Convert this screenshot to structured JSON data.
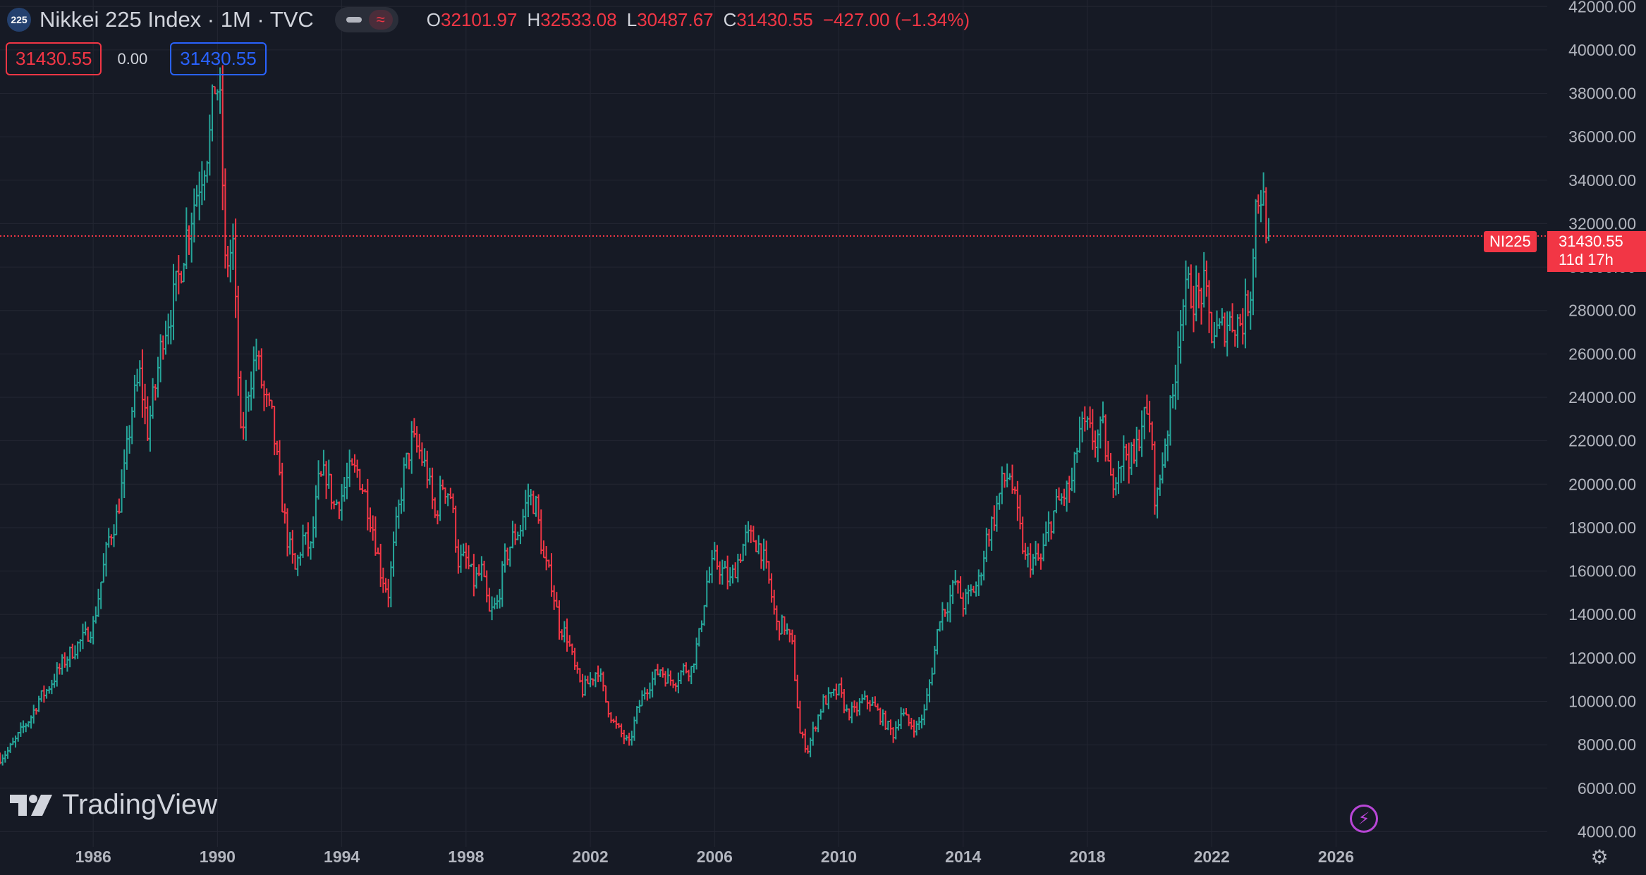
{
  "header": {
    "symbol_badge": "225",
    "title": "Nikkei 225 Index · 1M · TVC",
    "ohlc": {
      "o_label": "O",
      "o": "32101.97",
      "h_label": "H",
      "h": "32533.08",
      "l_label": "L",
      "l": "30487.67",
      "c_label": "C",
      "c": "31430.55",
      "change": "−427.00 (−1.34%)"
    }
  },
  "order_boxes": {
    "sell": "31430.55",
    "spread": "0.00",
    "buy": "31430.55"
  },
  "price_scale": {
    "symbol_tag": "NI225",
    "last_price": "31430.55",
    "countdown": "11d 17h"
  },
  "branding": {
    "logo_text": "TradingView"
  },
  "icons": {
    "flash": "flash-icon",
    "settings": "settings-icon"
  },
  "colors": {
    "background": "#161a25",
    "up": "#26a69a",
    "down": "#f23645",
    "grid": "#232632",
    "text": "#b2b5be"
  },
  "chart_data": {
    "type": "ohlc-bar",
    "interval": "1M",
    "y_ticks": [
      "4000.00",
      "6000.00",
      "8000.00",
      "10000.00",
      "12000.00",
      "14000.00",
      "16000.00",
      "18000.00",
      "20000.00",
      "22000.00",
      "24000.00",
      "26000.00",
      "28000.00",
      "30000.00",
      "32000.00",
      "34000.00",
      "36000.00",
      "38000.00",
      "40000.00",
      "42000.00"
    ],
    "x_ticks": [
      "1986",
      "1990",
      "1994",
      "1998",
      "2002",
      "2006",
      "2010",
      "2014",
      "2018",
      "2022",
      "2026"
    ],
    "ylim": [
      3300,
      42300
    ],
    "xlim": [
      1983.0,
      2032.8
    ],
    "last_price": 31430.55,
    "grid": true,
    "approx_monthly_closes": [
      [
        1983.0,
        7400
      ],
      [
        1983.25,
        7700
      ],
      [
        1983.5,
        8200
      ],
      [
        1983.75,
        8800
      ],
      [
        1984.0,
        9300
      ],
      [
        1984.25,
        10100
      ],
      [
        1984.5,
        10500
      ],
      [
        1984.75,
        11100
      ],
      [
        1985.0,
        11700
      ],
      [
        1985.25,
        12200
      ],
      [
        1985.5,
        12600
      ],
      [
        1985.75,
        13000
      ],
      [
        1986.0,
        13500
      ],
      [
        1986.25,
        15500
      ],
      [
        1986.5,
        17500
      ],
      [
        1986.75,
        18500
      ],
      [
        1987.0,
        20500
      ],
      [
        1987.25,
        23500
      ],
      [
        1987.5,
        25000
      ],
      [
        1987.75,
        22500
      ],
      [
        1988.0,
        24500
      ],
      [
        1988.25,
        27000
      ],
      [
        1988.5,
        28000
      ],
      [
        1988.75,
        29500
      ],
      [
        1989.0,
        31500
      ],
      [
        1989.25,
        33000
      ],
      [
        1989.5,
        34500
      ],
      [
        1989.75,
        36000
      ],
      [
        1989.95,
        38900
      ],
      [
        1990.1,
        37000
      ],
      [
        1990.25,
        30000
      ],
      [
        1990.5,
        31000
      ],
      [
        1990.75,
        22000
      ],
      [
        1991.0,
        24500
      ],
      [
        1991.25,
        26000
      ],
      [
        1991.5,
        24000
      ],
      [
        1991.75,
        23000
      ],
      [
        1992.0,
        20000
      ],
      [
        1992.25,
        17500
      ],
      [
        1992.5,
        16000
      ],
      [
        1992.75,
        17500
      ],
      [
        1993.0,
        17000
      ],
      [
        1993.25,
        20000
      ],
      [
        1993.5,
        20500
      ],
      [
        1993.75,
        19000
      ],
      [
        1994.0,
        19500
      ],
      [
        1994.25,
        20500
      ],
      [
        1994.5,
        20600
      ],
      [
        1994.75,
        19500
      ],
      [
        1995.0,
        18000
      ],
      [
        1995.25,
        16000
      ],
      [
        1995.5,
        15000
      ],
      [
        1995.75,
        18000
      ],
      [
        1996.0,
        20500
      ],
      [
        1996.25,
        22000
      ],
      [
        1996.5,
        21500
      ],
      [
        1996.75,
        20500
      ],
      [
        1997.0,
        18500
      ],
      [
        1997.25,
        20000
      ],
      [
        1997.5,
        19500
      ],
      [
        1997.75,
        16500
      ],
      [
        1998.0,
        16500
      ],
      [
        1998.25,
        15500
      ],
      [
        1998.5,
        16000
      ],
      [
        1998.75,
        14000
      ],
      [
        1999.0,
        14500
      ],
      [
        1999.25,
        16500
      ],
      [
        1999.5,
        17500
      ],
      [
        1999.75,
        18000
      ],
      [
        2000.0,
        19500
      ],
      [
        2000.25,
        19000
      ],
      [
        2000.5,
        16500
      ],
      [
        2000.75,
        15500
      ],
      [
        2001.0,
        13500
      ],
      [
        2001.25,
        13000
      ],
      [
        2001.5,
        11500
      ],
      [
        2001.75,
        10500
      ],
      [
        2002.0,
        11000
      ],
      [
        2002.25,
        11500
      ],
      [
        2002.5,
        10000
      ],
      [
        2002.75,
        9000
      ],
      [
        2003.0,
        8500
      ],
      [
        2003.25,
        8000
      ],
      [
        2003.5,
        9500
      ],
      [
        2003.75,
        10500
      ],
      [
        2004.0,
        11000
      ],
      [
        2004.25,
        11500
      ],
      [
        2004.5,
        11000
      ],
      [
        2004.75,
        11000
      ],
      [
        2005.0,
        11500
      ],
      [
        2005.25,
        11500
      ],
      [
        2005.5,
        13000
      ],
      [
        2005.75,
        15500
      ],
      [
        2006.0,
        16500
      ],
      [
        2006.25,
        16000
      ],
      [
        2006.5,
        15500
      ],
      [
        2006.75,
        16500
      ],
      [
        2007.0,
        17500
      ],
      [
        2007.25,
        17500
      ],
      [
        2007.5,
        17000
      ],
      [
        2007.75,
        15500
      ],
      [
        2008.0,
        13500
      ],
      [
        2008.25,
        13500
      ],
      [
        2008.5,
        12500
      ],
      [
        2008.75,
        8500
      ],
      [
        2009.0,
        7800
      ],
      [
        2009.25,
        9000
      ],
      [
        2009.5,
        10000
      ],
      [
        2009.75,
        10200
      ],
      [
        2010.0,
        10500
      ],
      [
        2010.25,
        9500
      ],
      [
        2010.5,
        9500
      ],
      [
        2010.75,
        10000
      ],
      [
        2011.0,
        10000
      ],
      [
        2011.25,
        9500
      ],
      [
        2011.5,
        9000
      ],
      [
        2011.75,
        8500
      ],
      [
        2012.0,
        9500
      ],
      [
        2012.25,
        9000
      ],
      [
        2012.5,
        8800
      ],
      [
        2012.75,
        9500
      ],
      [
        2013.0,
        11500
      ],
      [
        2013.25,
        14000
      ],
      [
        2013.5,
        14500
      ],
      [
        2013.75,
        15500
      ],
      [
        2014.0,
        14500
      ],
      [
        2014.25,
        15000
      ],
      [
        2014.5,
        15500
      ],
      [
        2014.75,
        17500
      ],
      [
        2015.0,
        18500
      ],
      [
        2015.25,
        20000
      ],
      [
        2015.5,
        20500
      ],
      [
        2015.75,
        18500
      ],
      [
        2016.0,
        16500
      ],
      [
        2016.25,
        16500
      ],
      [
        2016.5,
        16500
      ],
      [
        2016.75,
        18000
      ],
      [
        2017.0,
        19000
      ],
      [
        2017.25,
        19500
      ],
      [
        2017.5,
        20000
      ],
      [
        2017.75,
        22500
      ],
      [
        2018.0,
        22500
      ],
      [
        2018.25,
        22000
      ],
      [
        2018.5,
        22500
      ],
      [
        2018.75,
        20000
      ],
      [
        2019.0,
        21000
      ],
      [
        2019.25,
        21500
      ],
      [
        2019.5,
        21000
      ],
      [
        2019.75,
        23000
      ],
      [
        2020.0,
        23000
      ],
      [
        2020.2,
        18900
      ],
      [
        2020.5,
        22000
      ],
      [
        2020.75,
        24000
      ],
      [
        2021.0,
        28000
      ],
      [
        2021.25,
        29000
      ],
      [
        2021.5,
        28500
      ],
      [
        2021.75,
        29000
      ],
      [
        2022.0,
        27000
      ],
      [
        2022.25,
        27000
      ],
      [
        2022.5,
        27500
      ],
      [
        2022.75,
        27500
      ],
      [
        2023.0,
        27500
      ],
      [
        2023.25,
        29000
      ],
      [
        2023.42,
        33000
      ],
      [
        2023.6,
        33500
      ],
      [
        2023.75,
        32100
      ],
      [
        2023.84,
        31430.55
      ]
    ]
  }
}
